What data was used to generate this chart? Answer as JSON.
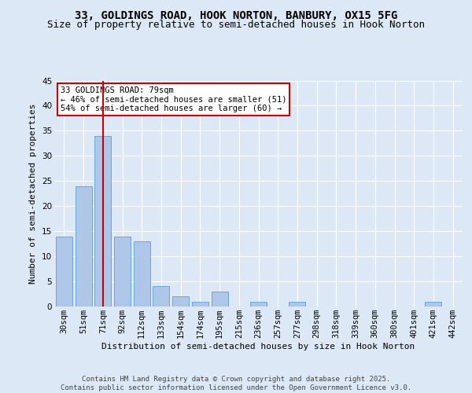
{
  "title1": "33, GOLDINGS ROAD, HOOK NORTON, BANBURY, OX15 5FG",
  "title2": "Size of property relative to semi-detached houses in Hook Norton",
  "xlabel": "Distribution of semi-detached houses by size in Hook Norton",
  "ylabel": "Number of semi-detached properties",
  "categories": [
    "30sqm",
    "51sqm",
    "71sqm",
    "92sqm",
    "112sqm",
    "133sqm",
    "154sqm",
    "174sqm",
    "195sqm",
    "215sqm",
    "236sqm",
    "257sqm",
    "277sqm",
    "298sqm",
    "318sqm",
    "339sqm",
    "360sqm",
    "380sqm",
    "401sqm",
    "421sqm",
    "442sqm"
  ],
  "values": [
    14,
    24,
    34,
    14,
    13,
    4,
    2,
    1,
    3,
    0,
    1,
    0,
    1,
    0,
    0,
    0,
    0,
    0,
    0,
    1,
    0
  ],
  "bar_color": "#aec6e8",
  "bar_edge_color": "#5a9fd4",
  "marker_bar_index": 2,
  "marker_color": "#cc0000",
  "annotation_title": "33 GOLDINGS ROAD: 79sqm",
  "annotation_line1": "← 46% of semi-detached houses are smaller (51)",
  "annotation_line2": "54% of semi-detached houses are larger (60) →",
  "annotation_box_color": "#cc0000",
  "ylim": [
    0,
    45
  ],
  "yticks": [
    0,
    5,
    10,
    15,
    20,
    25,
    30,
    35,
    40,
    45
  ],
  "footer": "Contains HM Land Registry data © Crown copyright and database right 2025.\nContains public sector information licensed under the Open Government Licence v3.0.",
  "bg_color": "#dce8f5",
  "plot_bg_color": "#dce8f5",
  "grid_color": "#ffffff",
  "title_fontsize": 10,
  "subtitle_fontsize": 9,
  "axis_label_fontsize": 8,
  "tick_fontsize": 7.5,
  "footer_fontsize": 6.5,
  "ann_fontsize": 7.5
}
